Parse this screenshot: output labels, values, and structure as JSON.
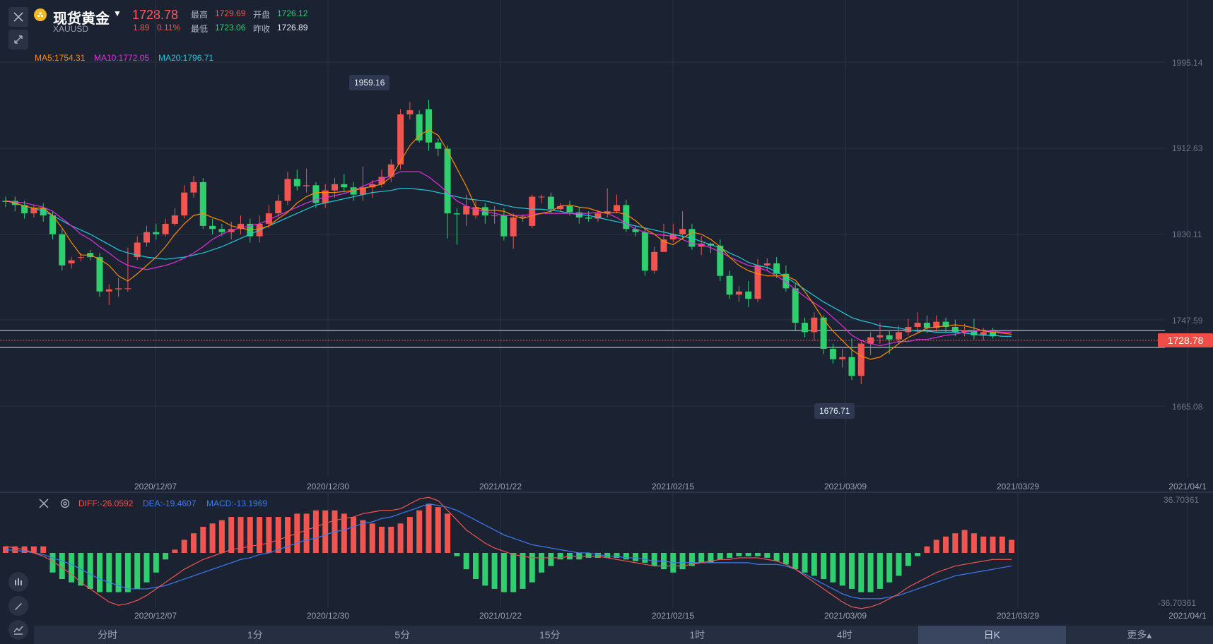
{
  "symbol": {
    "name": "现货黄金",
    "code": "XAUUSD",
    "price": "1728.78",
    "change": "1.89",
    "change_pct": "0.11%",
    "high_label": "最高",
    "high": "1729.69",
    "open_label": "开盘",
    "open": "1726.12",
    "low_label": "最低",
    "low": "1723.06",
    "prev_label": "昨收",
    "prev_close": "1726.89"
  },
  "indicators": {
    "ma5": "MA5:1754.31",
    "ma10": "MA10:1772.05",
    "ma20": "MA20:1796.71"
  },
  "macd": {
    "diff": "DIFF:-26.0592",
    "dea": "DEA:-19.4607",
    "macd": "MACD:-13.1969",
    "top": "36.70361",
    "bottom": "-36.70361"
  },
  "chart_data": {
    "type": "candlestick",
    "price_axis": [
      "1995.14",
      "1912.63",
      "1830.11",
      "1747.59",
      "1665.08"
    ],
    "dates": [
      "2020/12/07",
      "2020/12/30",
      "2021/01/22",
      "2021/02/15",
      "2021/03/09",
      "2021/03/29",
      "2021/04/1"
    ],
    "max_marker": "1959.16",
    "min_marker": "1676.71",
    "current_price_tag": "1728.78",
    "colors": {
      "up": "#f0554f",
      "down": "#2fce6e",
      "ma5": "#ff8a00",
      "ma10": "#e030e0",
      "ma20": "#22c9d9",
      "dea": "#3d7cf2"
    },
    "candles": [
      [
        1862,
        1861,
        1866,
        1856
      ],
      [
        1862,
        1858,
        1866,
        1852
      ],
      [
        1858,
        1850,
        1862,
        1845
      ],
      [
        1850,
        1855,
        1858,
        1846
      ],
      [
        1855,
        1848,
        1860,
        1842
      ],
      [
        1848,
        1830,
        1852,
        1825
      ],
      [
        1830,
        1800,
        1835,
        1795
      ],
      [
        1802,
        1805,
        1808,
        1797
      ],
      [
        1808,
        1808,
        1812,
        1804
      ],
      [
        1812,
        1808,
        1815,
        1805
      ],
      [
        1808,
        1775,
        1812,
        1770
      ],
      [
        1775,
        1777,
        1782,
        1762
      ],
      [
        1777,
        1778,
        1788,
        1770
      ],
      [
        1778,
        1778,
        1817,
        1775
      ],
      [
        1808,
        1822,
        1828,
        1805
      ],
      [
        1822,
        1832,
        1838,
        1818
      ],
      [
        1832,
        1830,
        1840,
        1825
      ],
      [
        1830,
        1840,
        1845,
        1828
      ],
      [
        1840,
        1848,
        1855,
        1838
      ],
      [
        1848,
        1870,
        1877,
        1845
      ],
      [
        1870,
        1880,
        1886,
        1865
      ],
      [
        1880,
        1838,
        1884,
        1835
      ],
      [
        1838,
        1835,
        1845,
        1830
      ],
      [
        1835,
        1832,
        1840,
        1828
      ],
      [
        1832,
        1835,
        1842,
        1825
      ],
      [
        1835,
        1840,
        1848,
        1830
      ],
      [
        1840,
        1828,
        1845,
        1822
      ],
      [
        1828,
        1840,
        1848,
        1822
      ],
      [
        1840,
        1850,
        1858,
        1836
      ],
      [
        1850,
        1862,
        1868,
        1846
      ],
      [
        1862,
        1883,
        1890,
        1858
      ],
      [
        1883,
        1876,
        1892,
        1872
      ],
      [
        1876,
        1877,
        1893,
        1870
      ],
      [
        1877,
        1860,
        1880,
        1855
      ],
      [
        1860,
        1872,
        1878,
        1855
      ],
      [
        1872,
        1878,
        1884,
        1865
      ],
      [
        1878,
        1875,
        1888,
        1870
      ],
      [
        1875,
        1868,
        1880,
        1862
      ],
      [
        1868,
        1875,
        1895,
        1862
      ],
      [
        1875,
        1878,
        1882,
        1865
      ],
      [
        1878,
        1885,
        1892,
        1875
      ],
      [
        1885,
        1897,
        1902,
        1880
      ],
      [
        1897,
        1945,
        1950,
        1892
      ],
      [
        1945,
        1949,
        1957,
        1940
      ],
      [
        1945,
        1920,
        1949,
        1918
      ],
      [
        1950,
        1918,
        1959,
        1910
      ],
      [
        1918,
        1912,
        1922,
        1905
      ],
      [
        1912,
        1850,
        1915,
        1826
      ],
      [
        1850,
        1849,
        1855,
        1820
      ],
      [
        1849,
        1857,
        1868,
        1838
      ],
      [
        1848,
        1856,
        1862,
        1845
      ],
      [
        1856,
        1848,
        1860,
        1840
      ],
      [
        1848,
        1848,
        1857,
        1840
      ],
      [
        1848,
        1828,
        1855,
        1824
      ],
      [
        1828,
        1846,
        1850,
        1816
      ],
      [
        1846,
        1847,
        1849,
        1842
      ],
      [
        1838,
        1866,
        1868,
        1836
      ],
      [
        1866,
        1866,
        1868,
        1860
      ],
      [
        1866,
        1854,
        1870,
        1850
      ],
      [
        1854,
        1857,
        1860,
        1852
      ],
      [
        1857,
        1851,
        1862,
        1848
      ],
      [
        1851,
        1846,
        1856,
        1840
      ],
      [
        1846,
        1845,
        1852,
        1842
      ],
      [
        1845,
        1850,
        1853,
        1842
      ],
      [
        1850,
        1852,
        1874,
        1846
      ],
      [
        1852,
        1858,
        1868,
        1850
      ],
      [
        1858,
        1835,
        1863,
        1832
      ],
      [
        1835,
        1832,
        1838,
        1828
      ],
      [
        1832,
        1795,
        1835,
        1790
      ],
      [
        1795,
        1813,
        1818,
        1792
      ],
      [
        1813,
        1825,
        1840,
        1820
      ],
      [
        1825,
        1830,
        1840,
        1822
      ],
      [
        1830,
        1835,
        1852,
        1825
      ],
      [
        1835,
        1818,
        1840,
        1815
      ],
      [
        1818,
        1821,
        1828,
        1810
      ],
      [
        1821,
        1819,
        1822,
        1812
      ],
      [
        1819,
        1790,
        1825,
        1785
      ],
      [
        1790,
        1772,
        1795,
        1768
      ],
      [
        1772,
        1775,
        1780,
        1765
      ],
      [
        1775,
        1768,
        1785,
        1760
      ],
      [
        1768,
        1800,
        1806,
        1765
      ],
      [
        1800,
        1802,
        1807,
        1795
      ],
      [
        1802,
        1792,
        1808,
        1788
      ],
      [
        1792,
        1778,
        1800,
        1775
      ],
      [
        1778,
        1745,
        1782,
        1738
      ],
      [
        1745,
        1736,
        1750,
        1731
      ],
      [
        1736,
        1750,
        1755,
        1728
      ],
      [
        1750,
        1720,
        1752,
        1715
      ],
      [
        1720,
        1710,
        1725,
        1706
      ],
      [
        1710,
        1712,
        1720,
        1702
      ],
      [
        1712,
        1694,
        1730,
        1690
      ],
      [
        1694,
        1725,
        1728,
        1686
      ],
      [
        1725,
        1731,
        1736,
        1714
      ],
      [
        1731,
        1733,
        1745,
        1725
      ],
      [
        1733,
        1729,
        1738,
        1715
      ],
      [
        1729,
        1736,
        1742,
        1725
      ],
      [
        1736,
        1741,
        1749,
        1733
      ],
      [
        1741,
        1745,
        1755,
        1735
      ],
      [
        1745,
        1740,
        1752,
        1735
      ],
      [
        1740,
        1746,
        1752,
        1736
      ],
      [
        1746,
        1741,
        1750,
        1736
      ],
      [
        1741,
        1736,
        1748,
        1732
      ],
      [
        1736,
        1738,
        1744,
        1732
      ],
      [
        1738,
        1733,
        1749,
        1729
      ],
      [
        1733,
        1736,
        1740,
        1728
      ],
      [
        1736,
        1732,
        1740,
        1730
      ]
    ],
    "ma5": [
      1862,
      1860,
      1857,
      1855,
      1855,
      1848,
      1836,
      1822,
      1810,
      1810,
      1806,
      1800,
      1790,
      1785,
      1792,
      1800,
      1808,
      1818,
      1830,
      1840,
      1848,
      1850,
      1846,
      1843,
      1838,
      1836,
      1834,
      1835,
      1838,
      1845,
      1851,
      1860,
      1866,
      1870,
      1870,
      1870,
      1871,
      1872,
      1874,
      1876,
      1878,
      1885,
      1900,
      1915,
      1925,
      1930,
      1925,
      1910,
      1893,
      1876,
      1856,
      1853,
      1853,
      1852,
      1848,
      1845,
      1848,
      1850,
      1852,
      1857,
      1858,
      1856,
      1855,
      1852,
      1850,
      1851,
      1849,
      1843,
      1835,
      1830,
      1823,
      1820,
      1826,
      1832,
      1830,
      1825,
      1818,
      1808,
      1800,
      1795,
      1792,
      1790,
      1790,
      1790,
      1786,
      1775,
      1762,
      1748,
      1737,
      1728,
      1719,
      1713,
      1710,
      1712,
      1718,
      1725,
      1731,
      1735,
      1740,
      1741,
      1742,
      1743,
      1742,
      1740,
      1737,
      1736,
      1735,
      1734
    ],
    "ma10": [
      1862,
      1861,
      1860,
      1858,
      1856,
      1852,
      1845,
      1838,
      1830,
      1825,
      1818,
      1812,
      1805,
      1800,
      1798,
      1796,
      1798,
      1800,
      1803,
      1807,
      1812,
      1818,
      1825,
      1830,
      1834,
      1836,
      1838,
      1840,
      1844,
      1848,
      1852,
      1856,
      1860,
      1863,
      1865,
      1867,
      1869,
      1872,
      1876,
      1880,
      1883,
      1886,
      1890,
      1890,
      1890,
      1885,
      1878,
      1870,
      1862,
      1857,
      1853,
      1852,
      1850,
      1848,
      1848,
      1848,
      1849,
      1850,
      1850,
      1850,
      1850,
      1850,
      1850,
      1851,
      1850,
      1846,
      1840,
      1835,
      1832,
      1830,
      1829,
      1828,
      1825,
      1821,
      1820,
      1817,
      1813,
      1808,
      1804,
      1800,
      1798,
      1795,
      1790,
      1784,
      1777,
      1770,
      1764,
      1758,
      1750,
      1742,
      1733,
      1728,
      1725,
      1723,
      1725,
      1727,
      1727,
      1729,
      1729,
      1731,
      1733,
      1734,
      1736,
      1737,
      1738,
      1737,
      1736,
      1736
    ],
    "ma20": [
      1862,
      1860,
      1857,
      1855,
      1852,
      1848,
      1843,
      1838,
      1834,
      1830,
      1825,
      1820,
      1815,
      1812,
      1810,
      1808,
      1807,
      1806,
      1807,
      1808,
      1810,
      1812,
      1815,
      1818,
      1822,
      1826,
      1830,
      1834,
      1838,
      1842,
      1846,
      1850,
      1854,
      1858,
      1860,
      1862,
      1864,
      1866,
      1868,
      1870,
      1871,
      1872,
      1874,
      1874,
      1873,
      1872,
      1870,
      1868,
      1866,
      1864,
      1863,
      1862,
      1860,
      1858,
      1856,
      1855,
      1854,
      1854,
      1853,
      1852,
      1850,
      1849,
      1848,
      1846,
      1844,
      1842,
      1840,
      1838,
      1836,
      1834,
      1832,
      1830,
      1828,
      1826,
      1823,
      1820,
      1817,
      1812,
      1808,
      1803,
      1800,
      1798,
      1794,
      1789,
      1783,
      1777,
      1771,
      1765,
      1760,
      1755,
      1750,
      1747,
      1745,
      1742,
      1741,
      1740,
      1738,
      1737,
      1737,
      1736,
      1736,
      1736,
      1735,
      1734,
      1733,
      1733,
      1732,
      1732
    ],
    "macd_hist": [
      4,
      4,
      4,
      4,
      4,
      -12,
      -16,
      -18,
      -20,
      -22,
      -24,
      -24,
      -24,
      -24,
      -22,
      -18,
      -12,
      -4,
      2,
      8,
      12,
      16,
      18,
      20,
      22,
      22,
      22,
      22,
      22,
      22,
      22,
      24,
      24,
      26,
      26,
      26,
      24,
      22,
      20,
      18,
      16,
      16,
      18,
      22,
      26,
      30,
      28,
      24,
      -2,
      -10,
      -16,
      -20,
      -22,
      -24,
      -24,
      -22,
      -18,
      -12,
      -8,
      -4,
      -4,
      -4,
      -3,
      -3,
      -3,
      -3,
      -4,
      -5,
      -6,
      -8,
      -10,
      -12,
      -10,
      -8,
      -6,
      -6,
      -4,
      -3,
      -2,
      -2,
      -2,
      -3,
      -5,
      -7,
      -10,
      -12,
      -14,
      -16,
      -18,
      -20,
      -22,
      -24,
      -24,
      -22,
      -18,
      -14,
      -8,
      -2,
      4,
      8,
      10,
      12,
      14,
      12,
      10,
      10,
      10,
      8
    ],
    "diff": [
      4,
      3,
      2,
      0,
      -2,
      -5,
      -9,
      -13,
      -18,
      -22,
      -26,
      -30,
      -32,
      -31,
      -29,
      -26,
      -22,
      -18,
      -14,
      -10,
      -7,
      -4,
      -2,
      0,
      2,
      3,
      4,
      5,
      6,
      8,
      10,
      12,
      14,
      16,
      18,
      20,
      21,
      22,
      24,
      25,
      26,
      26,
      27,
      30,
      33,
      34,
      32,
      26,
      20,
      14,
      10,
      6,
      3,
      1,
      -1,
      -2,
      -3,
      -3,
      -3,
      -3,
      -2,
      -2,
      -2,
      -2,
      -3,
      -4,
      -5,
      -6,
      -7,
      -8,
      -8,
      -8,
      -8,
      -7,
      -6,
      -5,
      -4,
      -4,
      -3,
      -3,
      -3,
      -4,
      -5,
      -7,
      -10,
      -14,
      -18,
      -22,
      -26,
      -30,
      -33,
      -34,
      -33,
      -31,
      -28,
      -25,
      -21,
      -18,
      -15,
      -12,
      -10,
      -8,
      -7,
      -6,
      -5,
      -4,
      -4,
      -4
    ],
    "dea": [
      2,
      1.5,
      1,
      0,
      -1,
      -3,
      -5,
      -7,
      -10,
      -13,
      -16,
      -18,
      -20,
      -22,
      -22,
      -22,
      -21,
      -20,
      -18,
      -16,
      -14,
      -12,
      -10,
      -8,
      -6,
      -4,
      -3,
      -1,
      0,
      2,
      4,
      6,
      8,
      9,
      11,
      13,
      14,
      16,
      18,
      19,
      21,
      22,
      24,
      26,
      28,
      30,
      29,
      28,
      26,
      23,
      20,
      17,
      14,
      11,
      9,
      7,
      5,
      4,
      3,
      2,
      1,
      0,
      0,
      -1,
      -2,
      -2,
      -3,
      -3,
      -4,
      -5,
      -5,
      -6,
      -6,
      -6,
      -6,
      -6,
      -6,
      -6,
      -6,
      -6,
      -7,
      -7,
      -7,
      -8,
      -10,
      -13,
      -16,
      -19,
      -22,
      -25,
      -27,
      -28,
      -28,
      -28,
      -27,
      -26,
      -24,
      -22,
      -20,
      -18,
      -16,
      -14,
      -13,
      -12,
      -11,
      -10,
      -9,
      -8
    ]
  },
  "bottom_bar": {
    "periods": [
      "分时",
      "1分",
      "5分",
      "15分",
      "1时",
      "4时",
      "日K",
      "更多▴"
    ],
    "active_index": 6
  }
}
